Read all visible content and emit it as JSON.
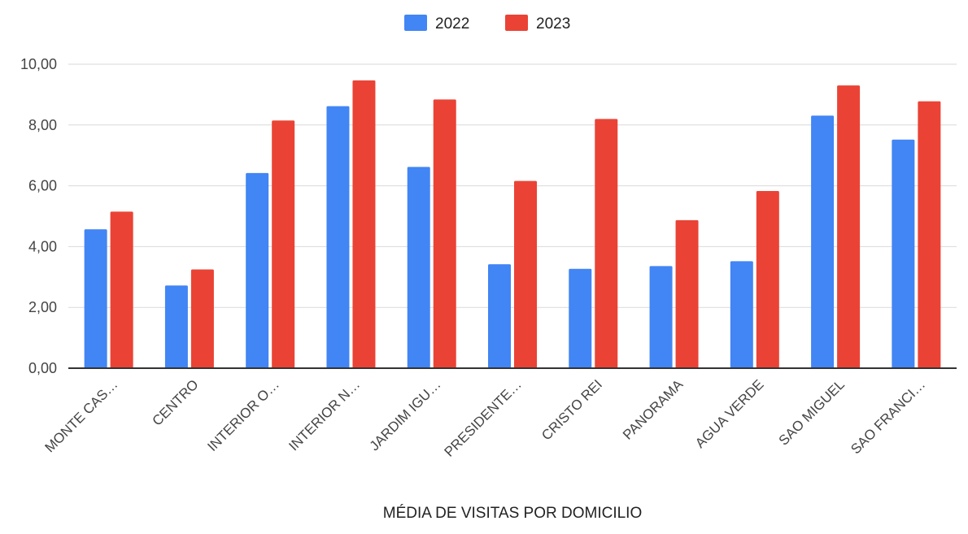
{
  "chart_data": {
    "type": "bar",
    "title": "",
    "xlabel": "MÉDIA DE VISITAS POR DOMICILIO",
    "ylabel": "",
    "ylim": [
      0,
      10
    ],
    "yticks": [
      "0,00",
      "2,00",
      "4,00",
      "6,00",
      "8,00",
      "10,00"
    ],
    "grid": true,
    "legend_position": "top-center",
    "categories": [
      "MONTE CAS…",
      "CENTRO",
      "INTERIOR O…",
      "INTERIOR N…",
      "JARDIM IGU…",
      "PRESIDENTE…",
      "CRISTO REI",
      "PANORAMA",
      "AGUA VERDE",
      "SAO MIGUEL",
      "SAO FRANCI…"
    ],
    "series": [
      {
        "name": "2022",
        "color": "#4285f4",
        "values": [
          4.57,
          2.72,
          6.42,
          8.62,
          6.62,
          3.42,
          3.27,
          3.36,
          3.52,
          8.31,
          7.52
        ]
      },
      {
        "name": "2023",
        "color": "#ea4335",
        "values": [
          5.15,
          3.25,
          8.15,
          9.47,
          8.84,
          6.16,
          8.2,
          4.87,
          5.83,
          9.3,
          8.78
        ]
      }
    ]
  }
}
